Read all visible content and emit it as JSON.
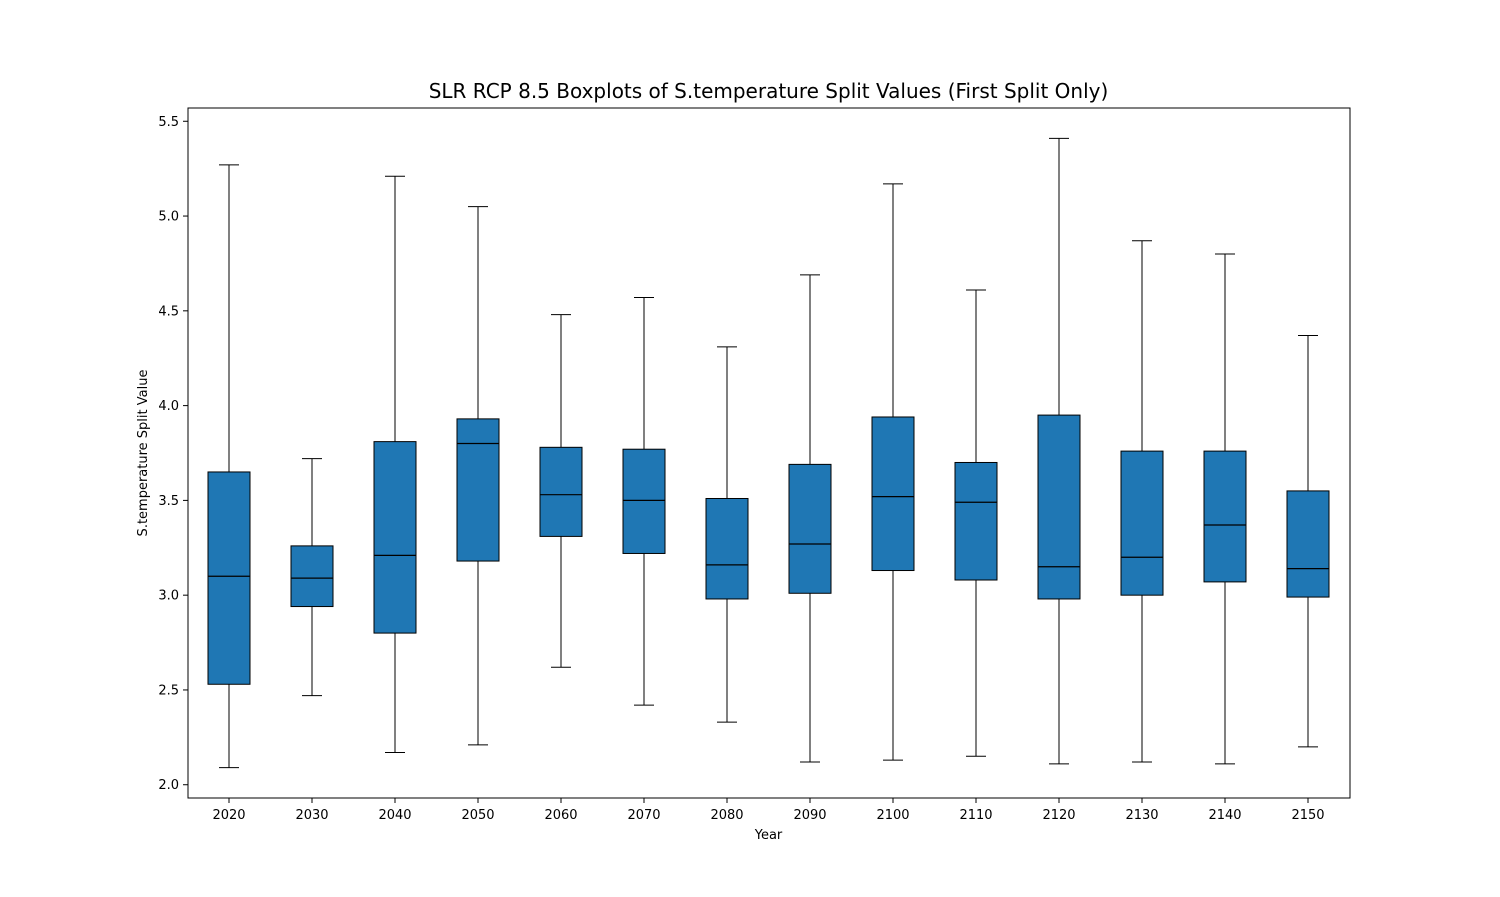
{
  "chart_data": {
    "type": "boxplot",
    "title": "SLR RCP 8.5 Boxplots of S.temperature Split Values (First Split Only)",
    "xlabel": "Year",
    "ylabel": "S.temperature Split Value",
    "ylim": [
      1.93,
      5.57
    ],
    "yticks": [
      "2.0",
      "2.5",
      "3.0",
      "3.5",
      "4.0",
      "4.5",
      "5.0",
      "5.5"
    ],
    "box_color": "#1f77b4",
    "grid": false,
    "categories": [
      "2020",
      "2030",
      "2040",
      "2050",
      "2060",
      "2070",
      "2080",
      "2090",
      "2100",
      "2110",
      "2120",
      "2130",
      "2140",
      "2150"
    ],
    "boxes": [
      {
        "whisker_low": 2.09,
        "q1": 2.53,
        "median": 3.1,
        "q3": 3.65,
        "whisker_high": 5.27
      },
      {
        "whisker_low": 2.47,
        "q1": 2.94,
        "median": 3.09,
        "q3": 3.26,
        "whisker_high": 3.72
      },
      {
        "whisker_low": 2.17,
        "q1": 2.8,
        "median": 3.21,
        "q3": 3.81,
        "whisker_high": 5.21
      },
      {
        "whisker_low": 2.21,
        "q1": 3.18,
        "median": 3.8,
        "q3": 3.93,
        "whisker_high": 5.05
      },
      {
        "whisker_low": 2.62,
        "q1": 3.31,
        "median": 3.53,
        "q3": 3.78,
        "whisker_high": 4.48
      },
      {
        "whisker_low": 2.42,
        "q1": 3.22,
        "median": 3.5,
        "q3": 3.77,
        "whisker_high": 4.57
      },
      {
        "whisker_low": 2.33,
        "q1": 2.98,
        "median": 3.16,
        "q3": 3.51,
        "whisker_high": 4.31
      },
      {
        "whisker_low": 2.12,
        "q1": 3.01,
        "median": 3.27,
        "q3": 3.69,
        "whisker_high": 4.69
      },
      {
        "whisker_low": 2.13,
        "q1": 3.13,
        "median": 3.52,
        "q3": 3.94,
        "whisker_high": 5.17
      },
      {
        "whisker_low": 2.15,
        "q1": 3.08,
        "median": 3.49,
        "q3": 3.7,
        "whisker_high": 4.61
      },
      {
        "whisker_low": 2.11,
        "q1": 2.98,
        "median": 3.15,
        "q3": 3.95,
        "whisker_high": 5.41
      },
      {
        "whisker_low": 2.12,
        "q1": 3.0,
        "median": 3.2,
        "q3": 3.76,
        "whisker_high": 4.87
      },
      {
        "whisker_low": 2.11,
        "q1": 3.07,
        "median": 3.37,
        "q3": 3.76,
        "whisker_high": 4.8
      },
      {
        "whisker_low": 2.2,
        "q1": 2.99,
        "median": 3.14,
        "q3": 3.55,
        "whisker_high": 4.37
      }
    ]
  }
}
